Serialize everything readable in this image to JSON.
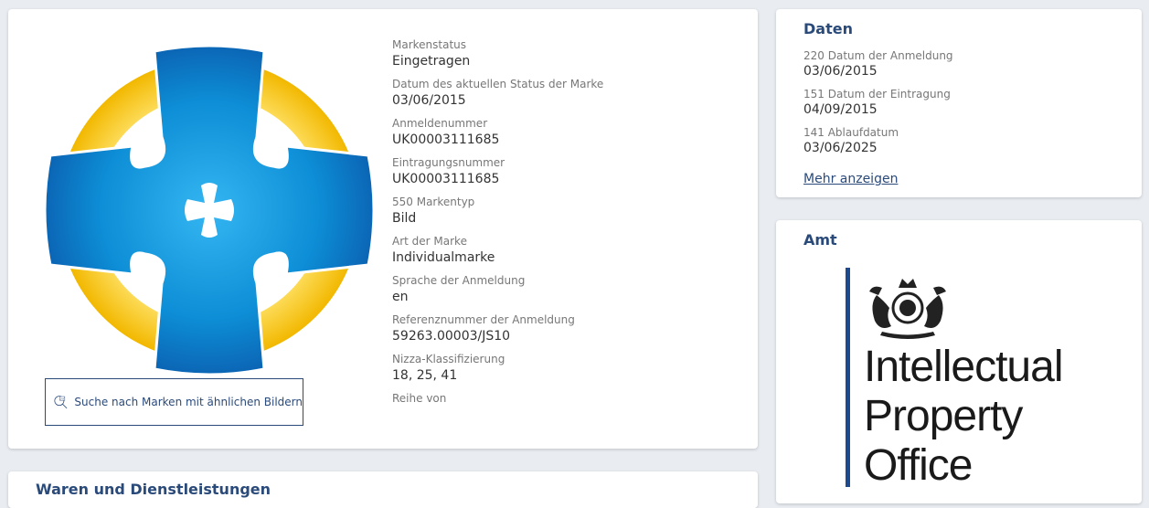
{
  "main": {
    "search_button_label": "Suche nach Marken mit ähnlichen Bildern",
    "fields": [
      {
        "label": "Markenstatus",
        "value": "Eingetragen"
      },
      {
        "label": "Datum des aktuellen Status der Marke",
        "value": "03/06/2015"
      },
      {
        "label": "Anmeldenummer",
        "value": "UK00003111685"
      },
      {
        "label": "Eintragungsnummer",
        "value": "UK00003111685"
      },
      {
        "label": "550 Markentyp",
        "value": "Bild"
      },
      {
        "label": "Art der Marke",
        "value": "Individualmarke"
      },
      {
        "label": "Sprache der Anmeldung",
        "value": "en"
      },
      {
        "label": "Referenznummer der Anmeldung",
        "value": "59263.00003/JS10"
      },
      {
        "label": "Nizza-Klassifizierung",
        "value": "18, 25, 41"
      },
      {
        "label": "Reihe von",
        "value": ""
      }
    ]
  },
  "dates": {
    "title": "Daten",
    "fields": [
      {
        "label": "220 Datum der Anmeldung",
        "value": "03/06/2015"
      },
      {
        "label": "151 Datum der Eintragung",
        "value": "04/09/2015"
      },
      {
        "label": "141 Ablaufdatum",
        "value": "03/06/2025"
      }
    ],
    "more_link": "Mehr anzeigen"
  },
  "office": {
    "title": "Amt",
    "logo_lines": [
      "Intellectual",
      "Property",
      "Office"
    ]
  },
  "goods": {
    "title": "Waren und Dienstleistungen"
  },
  "colors": {
    "accent": "#2a4a7a",
    "ring_yellow": "#f5c400",
    "cross_blue": "#1a78c9",
    "ipo_bar": "#1d4a8f"
  }
}
